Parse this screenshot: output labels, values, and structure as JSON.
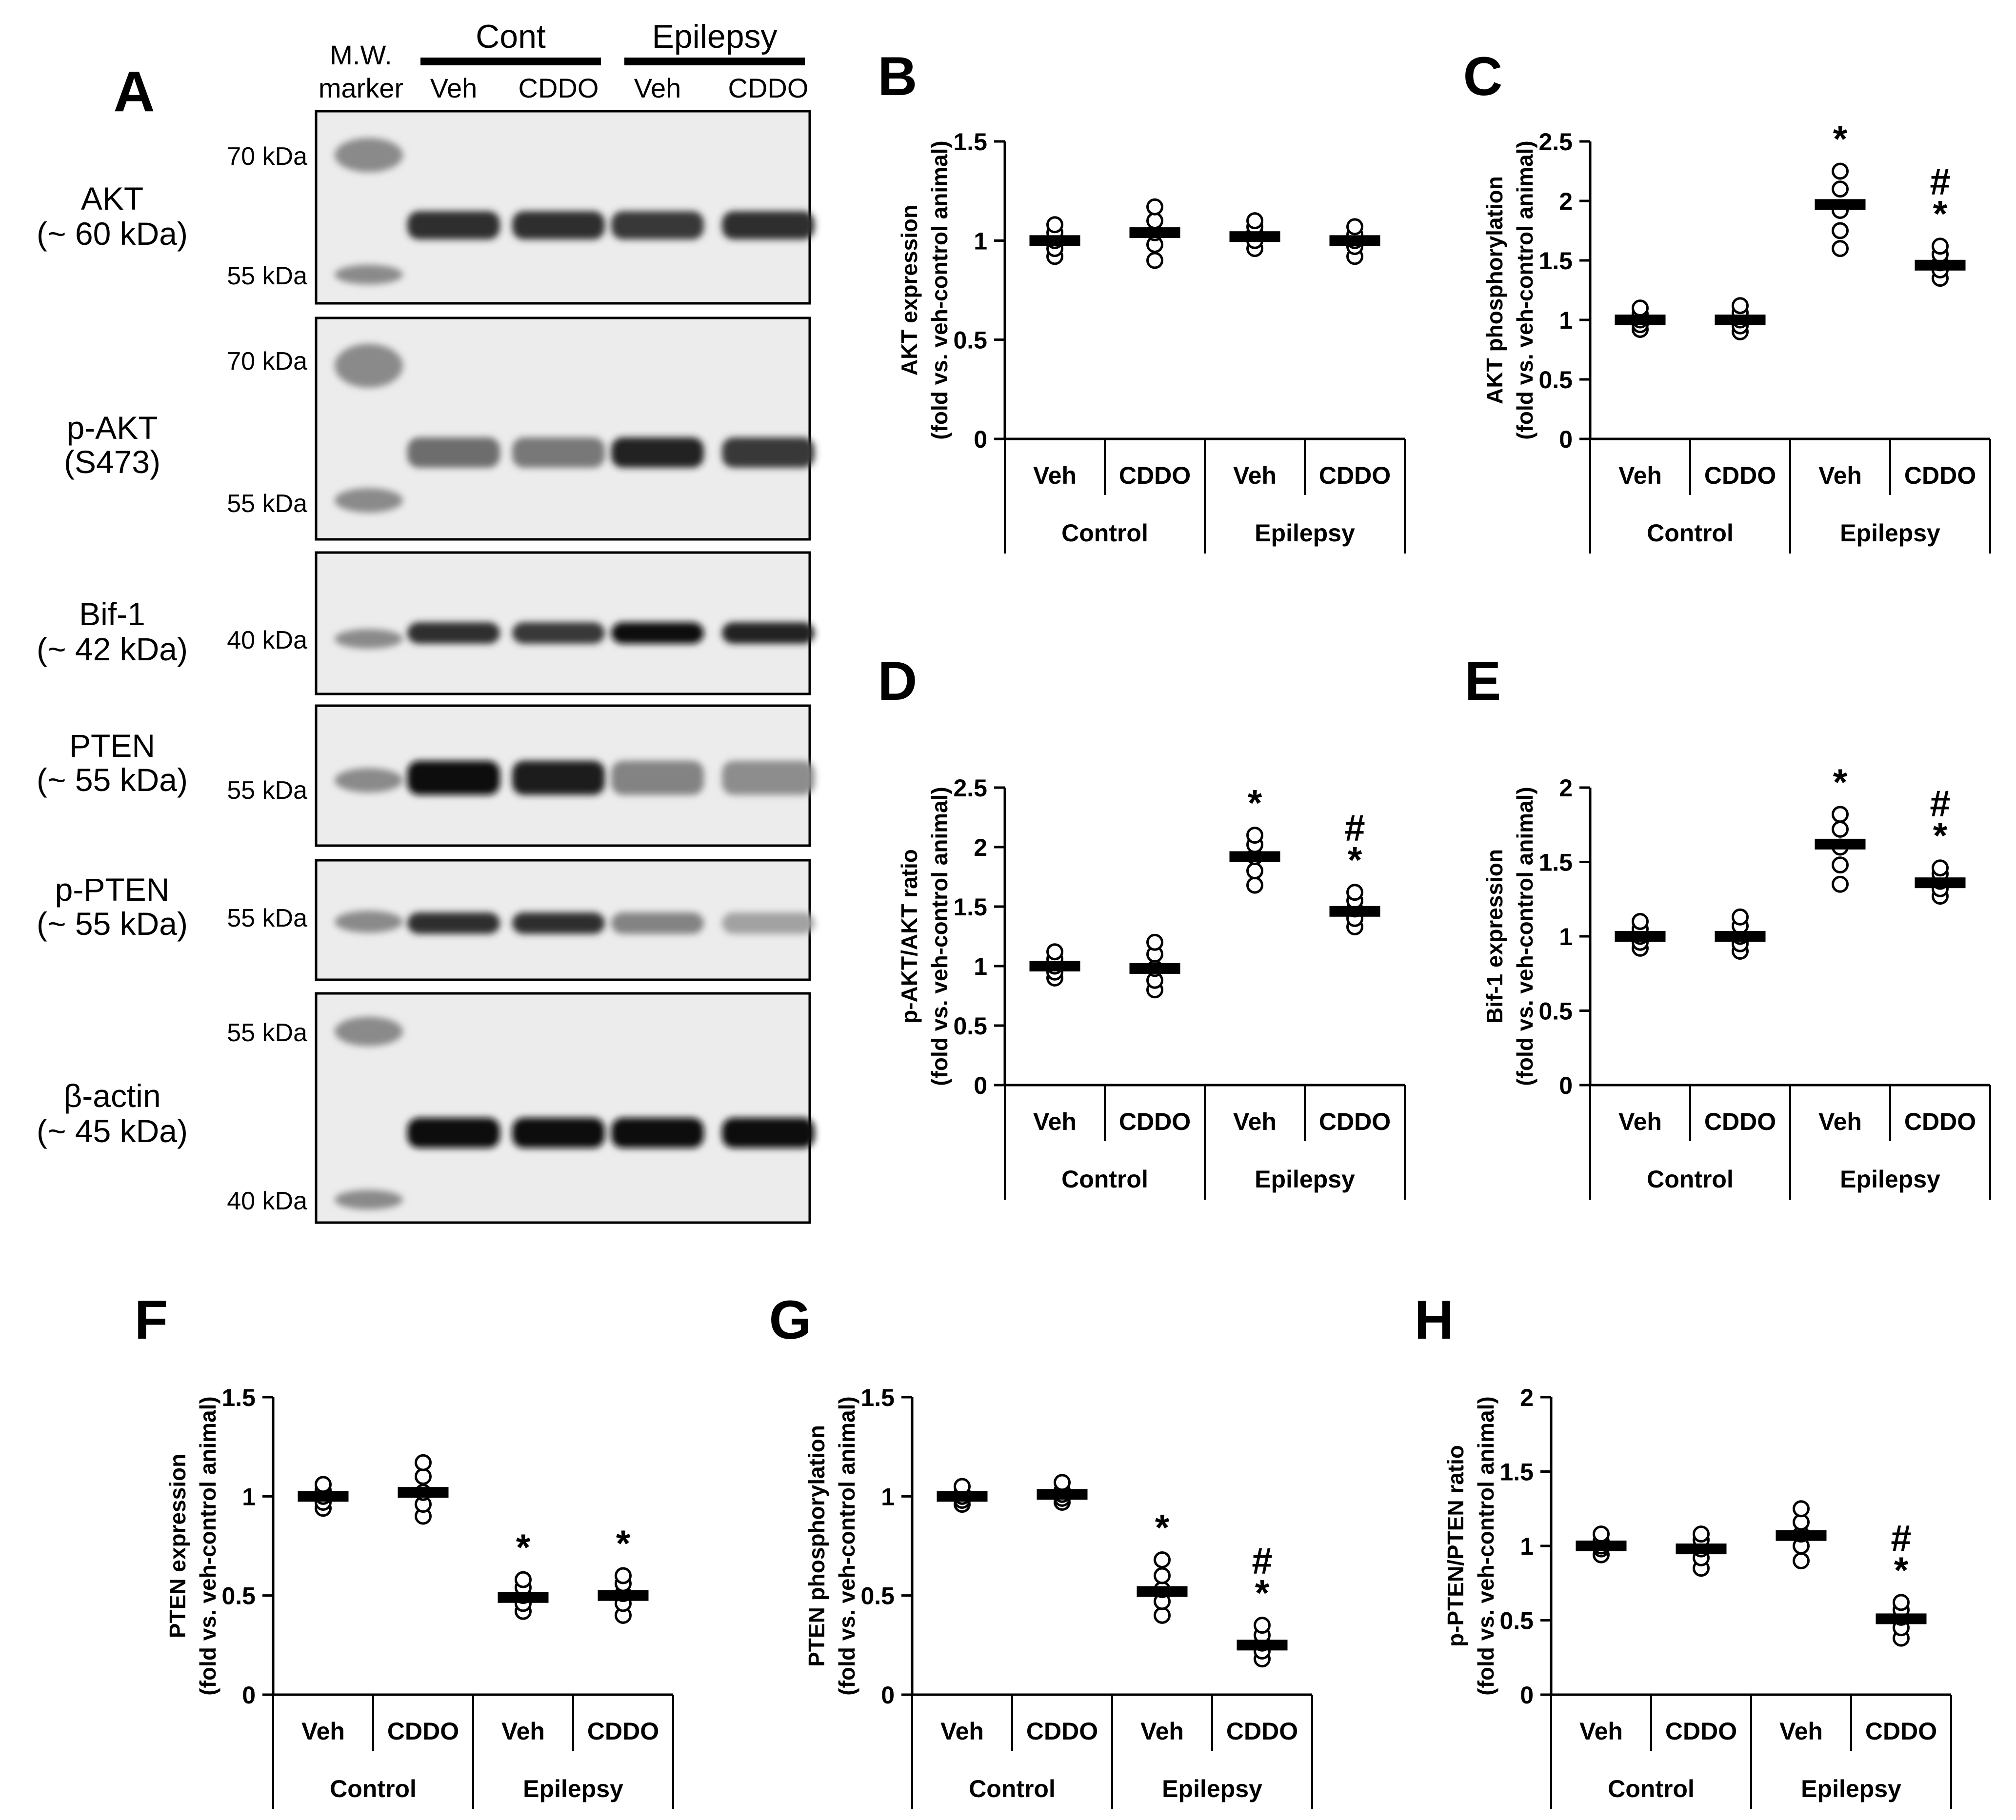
{
  "blot": {
    "panel_letter": "A",
    "mw_header": [
      "M.W.",
      "marker"
    ],
    "group_headers": [
      "Cont",
      "Epilepsy"
    ],
    "lane_labels": [
      "Veh",
      "CDDO",
      "Veh",
      "CDDO"
    ],
    "rows": [
      {
        "name": [
          "AKT",
          "(~ 60 kDa)"
        ],
        "markers": [
          "70 kDa",
          "55 kDa"
        ],
        "band_intensity": [
          0.85,
          0.85,
          0.8,
          0.85
        ]
      },
      {
        "name": [
          "p-AKT",
          "(S473)"
        ],
        "markers": [
          "70 kDa",
          "55 kDa"
        ],
        "band_intensity": [
          0.55,
          0.5,
          0.9,
          0.8
        ]
      },
      {
        "name": [
          "Bif-1",
          "(~ 42 kDa)"
        ],
        "markers": [
          "40 kDa"
        ],
        "band_intensity": [
          0.85,
          0.8,
          1.0,
          0.9
        ]
      },
      {
        "name": [
          "PTEN",
          "(~ 55 kDa)"
        ],
        "markers": [
          "55 kDa"
        ],
        "band_intensity": [
          1.0,
          0.95,
          0.45,
          0.4
        ]
      },
      {
        "name": [
          "p-PTEN",
          "(~ 55 kDa)"
        ],
        "markers": [
          "55 kDa"
        ],
        "band_intensity": [
          0.85,
          0.85,
          0.45,
          0.3
        ]
      },
      {
        "name": [
          "β-actin",
          "(~ 45 kDa)"
        ],
        "markers": [
          "55 kDa",
          "40 kDa"
        ],
        "band_intensity": [
          1.0,
          1.0,
          1.0,
          1.0
        ]
      }
    ]
  },
  "chart_data": [
    {
      "panel": "B",
      "type": "scatter",
      "ylabel": [
        "AKT expression",
        "(fold vs. veh-control animal)"
      ],
      "yticks": [
        "0",
        "0.5",
        "1",
        "1.5"
      ],
      "ylim": [
        0,
        1.5
      ],
      "categories": [
        "Veh",
        "CDDO",
        "Veh",
        "CDDO"
      ],
      "groups": [
        "Control",
        "Epilepsy"
      ],
      "means": [
        1.0,
        1.04,
        1.02,
        1.0
      ],
      "points": [
        [
          0.92,
          0.96,
          1.0,
          1.04,
          1.08
        ],
        [
          0.9,
          0.98,
          1.04,
          1.1,
          1.17
        ],
        [
          0.96,
          1.0,
          1.04,
          1.07,
          1.1
        ],
        [
          0.92,
          0.97,
          1.0,
          1.03,
          1.07
        ]
      ],
      "annotations": [
        [],
        [],
        [],
        []
      ]
    },
    {
      "panel": "C",
      "type": "scatter",
      "ylabel": [
        "AKT phosphorylation",
        "(fold vs. veh-control animal)"
      ],
      "yticks": [
        "0",
        "0.5",
        "1",
        "1.5",
        "2",
        "2.5"
      ],
      "ylim": [
        0,
        2.5
      ],
      "categories": [
        "Veh",
        "CDDO",
        "Veh",
        "CDDO"
      ],
      "groups": [
        "Control",
        "Epilepsy"
      ],
      "means": [
        1.0,
        1.0,
        1.97,
        1.46
      ],
      "points": [
        [
          0.92,
          0.96,
          1.0,
          1.05,
          1.1
        ],
        [
          0.9,
          0.95,
          1.0,
          1.06,
          1.12
        ],
        [
          1.6,
          1.75,
          1.92,
          2.1,
          2.25
        ],
        [
          1.35,
          1.42,
          1.48,
          1.55,
          1.62
        ]
      ],
      "annotations": [
        [],
        [],
        [
          "*"
        ],
        [
          "#",
          "*"
        ]
      ]
    },
    {
      "panel": "D",
      "type": "scatter",
      "ylabel": [
        "p-AKT/AKT ratio",
        "(fold vs. veh-control animal)"
      ],
      "yticks": [
        "0",
        "0.5",
        "1",
        "1.5",
        "2",
        "2.5"
      ],
      "ylim": [
        0,
        2.5
      ],
      "categories": [
        "Veh",
        "CDDO",
        "Veh",
        "CDDO"
      ],
      "groups": [
        "Control",
        "Epilepsy"
      ],
      "means": [
        1.0,
        0.98,
        1.92,
        1.46
      ],
      "points": [
        [
          0.9,
          0.95,
          1.0,
          1.06,
          1.12
        ],
        [
          0.8,
          0.88,
          0.98,
          1.1,
          1.2
        ],
        [
          1.68,
          1.8,
          1.92,
          2.02,
          2.1
        ],
        [
          1.33,
          1.4,
          1.48,
          1.55,
          1.62
        ]
      ],
      "annotations": [
        [],
        [],
        [
          "*"
        ],
        [
          "#",
          "*"
        ]
      ]
    },
    {
      "panel": "E",
      "type": "scatter",
      "ylabel": [
        "Bif-1 expression",
        "(fold vs. veh-control animal)"
      ],
      "yticks": [
        "0",
        "0.5",
        "1",
        "1.5",
        "2"
      ],
      "ylim": [
        0,
        2
      ],
      "categories": [
        "Veh",
        "CDDO",
        "Veh",
        "CDDO"
      ],
      "groups": [
        "Control",
        "Epilepsy"
      ],
      "means": [
        1.0,
        1.0,
        1.62,
        1.36
      ],
      "points": [
        [
          0.92,
          0.96,
          1.0,
          1.05,
          1.1
        ],
        [
          0.9,
          0.95,
          1.0,
          1.07,
          1.13
        ],
        [
          1.35,
          1.48,
          1.6,
          1.72,
          1.82
        ],
        [
          1.27,
          1.32,
          1.37,
          1.42,
          1.46
        ]
      ],
      "annotations": [
        [],
        [],
        [
          "*"
        ],
        [
          "#",
          "*"
        ]
      ]
    },
    {
      "panel": "F",
      "type": "scatter",
      "ylabel": [
        "PTEN expression",
        "(fold vs. veh-control animal)"
      ],
      "yticks": [
        "0",
        "0.5",
        "1",
        "1.5"
      ],
      "ylim": [
        0,
        1.5
      ],
      "categories": [
        "Veh",
        "CDDO",
        "Veh",
        "CDDO"
      ],
      "groups": [
        "Control",
        "Epilepsy"
      ],
      "means": [
        1.0,
        1.02,
        0.49,
        0.5
      ],
      "points": [
        [
          0.94,
          0.97,
          1.0,
          1.03,
          1.06
        ],
        [
          0.9,
          0.96,
          1.02,
          1.1,
          1.17
        ],
        [
          0.42,
          0.46,
          0.5,
          0.54,
          0.58
        ],
        [
          0.4,
          0.46,
          0.51,
          0.56,
          0.6
        ]
      ],
      "annotations": [
        [],
        [],
        [
          "*"
        ],
        [
          "*"
        ]
      ]
    },
    {
      "panel": "G",
      "type": "scatter",
      "ylabel": [
        "PTEN phosphorylation",
        "(fold vs. veh-control animal)"
      ],
      "yticks": [
        "0",
        "0.5",
        "1",
        "1.5"
      ],
      "ylim": [
        0,
        1.5
      ],
      "categories": [
        "Veh",
        "CDDO",
        "Veh",
        "CDDO"
      ],
      "groups": [
        "Control",
        "Epilepsy"
      ],
      "means": [
        1.0,
        1.01,
        0.52,
        0.25
      ],
      "points": [
        [
          0.96,
          0.98,
          1.0,
          1.02,
          1.05
        ],
        [
          0.97,
          0.99,
          1.01,
          1.03,
          1.07
        ],
        [
          0.4,
          0.47,
          0.53,
          0.6,
          0.68
        ],
        [
          0.18,
          0.22,
          0.26,
          0.3,
          0.35
        ]
      ],
      "annotations": [
        [],
        [],
        [
          "*"
        ],
        [
          "#",
          "*"
        ]
      ]
    },
    {
      "panel": "H",
      "type": "scatter",
      "ylabel": [
        "p-PTEN/PTEN ratio",
        "(fold vs. veh-control animal)"
      ],
      "yticks": [
        "0",
        "0.5",
        "1",
        "1.5",
        "2"
      ],
      "ylim": [
        0,
        2
      ],
      "categories": [
        "Veh",
        "CDDO",
        "Veh",
        "CDDO"
      ],
      "groups": [
        "Control",
        "Epilepsy"
      ],
      "means": [
        1.0,
        0.98,
        1.07,
        0.51
      ],
      "points": [
        [
          0.94,
          0.98,
          1.0,
          1.03,
          1.08
        ],
        [
          0.85,
          0.92,
          0.98,
          1.04,
          1.08
        ],
        [
          0.9,
          1.0,
          1.08,
          1.16,
          1.25
        ],
        [
          0.38,
          0.45,
          0.52,
          0.57,
          0.62
        ]
      ],
      "annotations": [
        [],
        [],
        [],
        [
          "#",
          "*"
        ]
      ]
    }
  ]
}
